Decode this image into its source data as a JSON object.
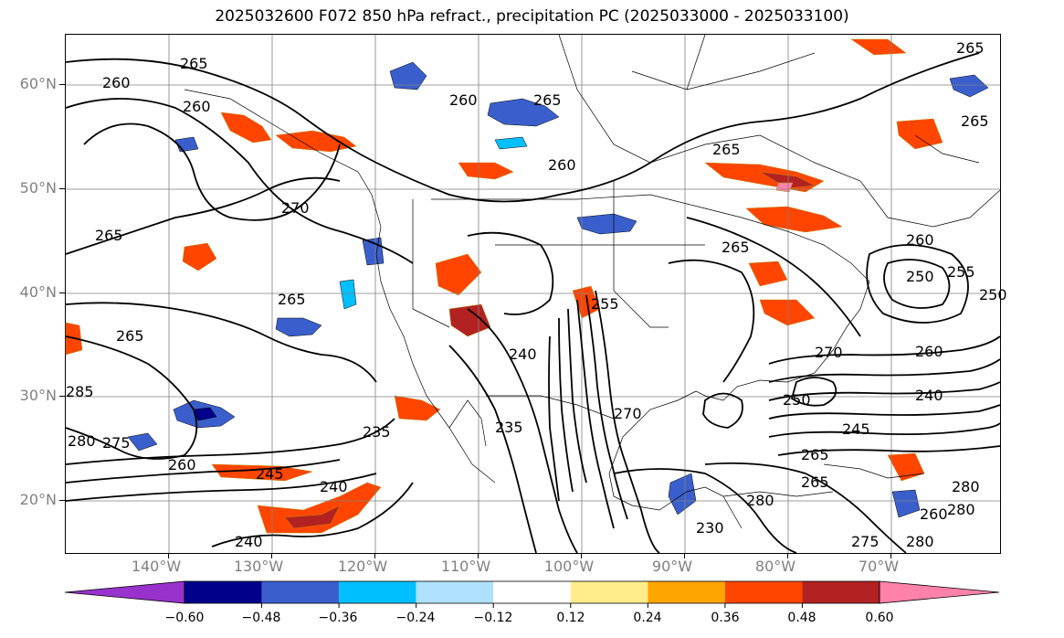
{
  "title": "2025032600 F072 850 hPa refract., precipitation PC (2025033000 - 2025033100)",
  "lat_labels": [
    "60°N",
    "50°N",
    "40°N",
    "30°N",
    "20°N"
  ],
  "lon_labels": [
    "140°W",
    "130°W",
    "120°W",
    "110°W",
    "100°W",
    "90°W",
    "80°W",
    "70°W"
  ],
  "colorbar": {
    "labels": [
      "−0.60",
      "−0.48",
      "−0.36",
      "−0.24",
      "−0.12",
      "0.12",
      "0.24",
      "0.36",
      "0.48",
      "0.60"
    ],
    "colors": [
      "#9932cc",
      "#00008b",
      "#3a5fcd",
      "#00bfff",
      "#b0e2ff",
      "#ffffff",
      "#ffec8b",
      "#ffa500",
      "#ff4500",
      "#b22222",
      "#ff82ab"
    ]
  },
  "contour_labels": [
    "265",
    "265",
    "260",
    "260",
    "260",
    "265",
    "265",
    "265",
    "260",
    "270",
    "265",
    "265",
    "265",
    "265",
    "285",
    "280",
    "275",
    "260",
    "245",
    "240",
    "240",
    "235",
    "240",
    "235",
    "250",
    "255",
    "260",
    "250",
    "255",
    "250",
    "270",
    "260",
    "240",
    "245",
    "265",
    "280",
    "280",
    "275",
    "280",
    "265",
    "260",
    "280",
    "270",
    "230"
  ],
  "map": {
    "contour_color": "#000000",
    "coast_color": "#000000",
    "grid_color": "#808080"
  }
}
